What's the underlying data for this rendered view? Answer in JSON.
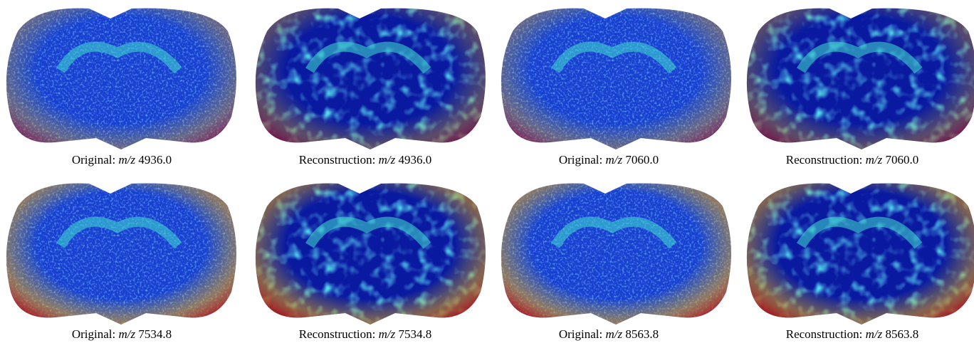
{
  "figure": {
    "panels": [
      {
        "label": "Original:",
        "symbol": "m/z",
        "mz": "4936.0"
      },
      {
        "label": "Reconstruction:",
        "symbol": "m/z",
        "mz": "4936.0"
      },
      {
        "label": "Original:",
        "symbol": "m/z",
        "mz": "7060.0"
      },
      {
        "label": "Reconstruction:",
        "symbol": "m/z",
        "mz": "7060.0"
      },
      {
        "label": "Original:",
        "symbol": "m/z",
        "mz": "7534.8"
      },
      {
        "label": "Reconstruction:",
        "symbol": "m/z",
        "mz": "7534.8"
      },
      {
        "label": "Original:",
        "symbol": "m/z",
        "mz": "8563.8"
      },
      {
        "label": "Reconstruction:",
        "symbol": "m/z",
        "mz": "8563.8"
      }
    ]
  }
}
